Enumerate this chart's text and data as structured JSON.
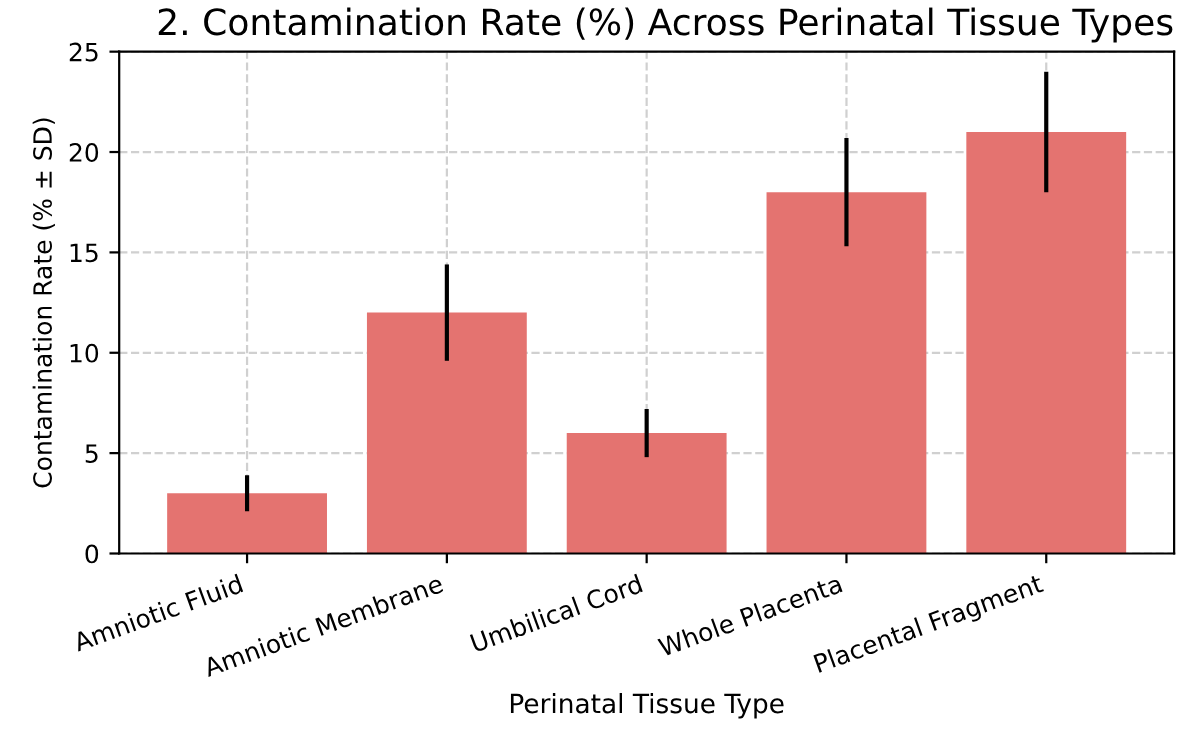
{
  "chart_data": {
    "type": "bar",
    "title": "2. Contamination Rate (%) Across Perinatal Tissue Types",
    "xlabel": "Perinatal Tissue Type",
    "ylabel": "Contamination Rate (% ± SD)",
    "categories": [
      "Amniotic Fluid",
      "Amniotic Membrane",
      "Umbilical Cord",
      "Whole Placenta",
      "Placental Fragment"
    ],
    "values": [
      3,
      12,
      6,
      18,
      21
    ],
    "errors": [
      0.9,
      2.4,
      1.2,
      2.7,
      3
    ],
    "color": "#e47370",
    "ylim": [
      0,
      25
    ],
    "yticks": [
      0,
      5,
      10,
      15,
      20,
      25
    ],
    "grid": true
  }
}
